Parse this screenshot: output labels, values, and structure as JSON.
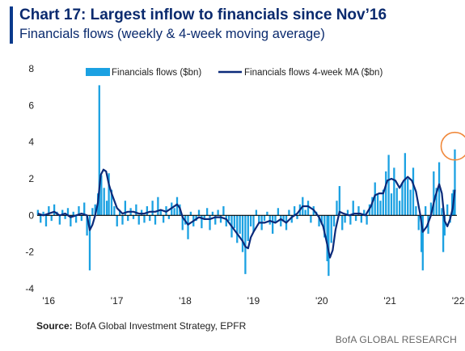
{
  "header": {
    "title": "Chart 17: Largest inflow to financials since Nov’16",
    "subtitle": "Financials flows (weekly & 4-week moving average)"
  },
  "footer": {
    "source_label": "Source:",
    "source_text": "BofA Global Investment Strategy, EPFR",
    "brand": "BofA GLOBAL RESEARCH"
  },
  "colors": {
    "bar": "#1ba1e2",
    "line": "#0b2a7a",
    "highlight_circle": "#f0883a",
    "title": "#0a2a6e"
  },
  "chart_data": {
    "type": "bar",
    "ylim": [
      -4,
      8
    ],
    "y_ticks": [
      "-4",
      "-2",
      "0",
      "2",
      "4",
      "6",
      "8"
    ],
    "x_ticks": [
      {
        "label": "'16",
        "at": 2016.0
      },
      {
        "label": "'17",
        "at": 2017.0
      },
      {
        "label": "'18",
        "at": 2018.0
      },
      {
        "label": "'19",
        "at": 2019.0
      },
      {
        "label": "'20",
        "at": 2020.0
      },
      {
        "label": "'21",
        "at": 2021.0
      },
      {
        "label": "'22",
        "at": 2022.0
      }
    ],
    "x_range": [
      2015.95,
      2022.1
    ],
    "legend_position": "top",
    "annotation": "circle highlighting latest weekly inflow (~3.6)",
    "series": [
      {
        "name": "Financials flows ($bn)",
        "kind": "bar",
        "points": [
          [
            2015.96,
            0.3
          ],
          [
            2016.0,
            -0.4
          ],
          [
            2016.04,
            0.2
          ],
          [
            2016.08,
            -0.6
          ],
          [
            2016.12,
            0.5
          ],
          [
            2016.16,
            -0.3
          ],
          [
            2016.2,
            0.6
          ],
          [
            2016.24,
            0.2
          ],
          [
            2016.28,
            -0.5
          ],
          [
            2016.32,
            0.3
          ],
          [
            2016.36,
            -0.2
          ],
          [
            2016.4,
            0.4
          ],
          [
            2016.44,
            -0.6
          ],
          [
            2016.48,
            0.2
          ],
          [
            2016.52,
            -0.4
          ],
          [
            2016.56,
            0.5
          ],
          [
            2016.6,
            -0.3
          ],
          [
            2016.64,
            0.7
          ],
          [
            2016.68,
            -1.1
          ],
          [
            2016.72,
            -3.0
          ],
          [
            2016.76,
            0.4
          ],
          [
            2016.8,
            0.6
          ],
          [
            2016.84,
            1.2
          ],
          [
            2016.86,
            7.1
          ],
          [
            2016.89,
            2.2
          ],
          [
            2016.93,
            1.5
          ],
          [
            2016.97,
            0.8
          ],
          [
            2017.0,
            2.3
          ],
          [
            2017.04,
            1.4
          ],
          [
            2017.08,
            0.5
          ],
          [
            2017.12,
            -0.6
          ],
          [
            2017.16,
            0.3
          ],
          [
            2017.2,
            -0.5
          ],
          [
            2017.24,
            0.8
          ],
          [
            2017.28,
            -0.3
          ],
          [
            2017.32,
            0.4
          ],
          [
            2017.36,
            -0.2
          ],
          [
            2017.4,
            0.6
          ],
          [
            2017.44,
            -0.5
          ],
          [
            2017.48,
            0.3
          ],
          [
            2017.52,
            -0.4
          ],
          [
            2017.56,
            0.5
          ],
          [
            2017.6,
            -0.3
          ],
          [
            2017.64,
            0.8
          ],
          [
            2017.68,
            -0.5
          ],
          [
            2017.72,
            1.0
          ],
          [
            2017.76,
            0.3
          ],
          [
            2017.8,
            -0.4
          ],
          [
            2017.84,
            0.5
          ],
          [
            2017.88,
            -0.2
          ],
          [
            2017.92,
            0.7
          ],
          [
            2017.96,
            0.4
          ],
          [
            2018.0,
            1.0
          ],
          [
            2018.04,
            0.6
          ],
          [
            2018.08,
            -0.8
          ],
          [
            2018.12,
            -0.5
          ],
          [
            2018.16,
            -1.3
          ],
          [
            2018.2,
            0.2
          ],
          [
            2018.24,
            -0.6
          ],
          [
            2018.28,
            -0.3
          ],
          [
            2018.32,
            0.3
          ],
          [
            2018.36,
            -0.7
          ],
          [
            2018.4,
            -0.2
          ],
          [
            2018.44,
            0.4
          ],
          [
            2018.48,
            -0.8
          ],
          [
            2018.52,
            0.2
          ],
          [
            2018.56,
            -0.5
          ],
          [
            2018.6,
            0.3
          ],
          [
            2018.64,
            -0.4
          ],
          [
            2018.68,
            0.5
          ],
          [
            2018.72,
            -0.6
          ],
          [
            2018.76,
            -0.3
          ],
          [
            2018.8,
            -1.2
          ],
          [
            2018.84,
            -0.7
          ],
          [
            2018.88,
            -1.5
          ],
          [
            2018.92,
            -1.0
          ],
          [
            2018.96,
            -2.0
          ],
          [
            2019.0,
            -3.2
          ],
          [
            2019.04,
            -1.4
          ],
          [
            2019.08,
            -0.6
          ],
          [
            2019.12,
            -0.9
          ],
          [
            2019.16,
            0.3
          ],
          [
            2019.2,
            -0.4
          ],
          [
            2019.24,
            -0.8
          ],
          [
            2019.28,
            -0.3
          ],
          [
            2019.32,
            0.2
          ],
          [
            2019.36,
            -0.5
          ],
          [
            2019.4,
            -1.0
          ],
          [
            2019.44,
            -0.4
          ],
          [
            2019.48,
            0.4
          ],
          [
            2019.52,
            -0.6
          ],
          [
            2019.56,
            -0.3
          ],
          [
            2019.6,
            -0.8
          ],
          [
            2019.64,
            0.3
          ],
          [
            2019.68,
            -0.4
          ],
          [
            2019.72,
            0.5
          ],
          [
            2019.76,
            -0.2
          ],
          [
            2019.8,
            0.6
          ],
          [
            2019.84,
            1.0
          ],
          [
            2019.88,
            0.3
          ],
          [
            2019.92,
            0.8
          ],
          [
            2019.96,
            -0.4
          ],
          [
            2020.0,
            0.5
          ],
          [
            2020.04,
            0.2
          ],
          [
            2020.08,
            -0.6
          ],
          [
            2020.12,
            -0.5
          ],
          [
            2020.16,
            -1.2
          ],
          [
            2020.2,
            -2.5
          ],
          [
            2020.22,
            -3.3
          ],
          [
            2020.26,
            -1.5
          ],
          [
            2020.3,
            -0.6
          ],
          [
            2020.34,
            0.8
          ],
          [
            2020.38,
            1.6
          ],
          [
            2020.42,
            -0.8
          ],
          [
            2020.46,
            -0.4
          ],
          [
            2020.5,
            0.3
          ],
          [
            2020.54,
            -0.5
          ],
          [
            2020.58,
            0.8
          ],
          [
            2020.62,
            -0.3
          ],
          [
            2020.66,
            0.5
          ],
          [
            2020.7,
            -0.4
          ],
          [
            2020.74,
            0.3
          ],
          [
            2020.78,
            -0.5
          ],
          [
            2020.82,
            0.6
          ],
          [
            2020.86,
            1.0
          ],
          [
            2020.9,
            1.8
          ],
          [
            2020.94,
            1.2
          ],
          [
            2020.98,
            0.8
          ],
          [
            2021.02,
            1.4
          ],
          [
            2021.06,
            2.4
          ],
          [
            2021.1,
            3.3
          ],
          [
            2021.14,
            1.2
          ],
          [
            2021.18,
            2.6
          ],
          [
            2021.22,
            1.5
          ],
          [
            2021.26,
            0.8
          ],
          [
            2021.3,
            1.8
          ],
          [
            2021.34,
            3.4
          ],
          [
            2021.38,
            2.0
          ],
          [
            2021.42,
            1.4
          ],
          [
            2021.46,
            2.6
          ],
          [
            2021.5,
            0.5
          ],
          [
            2021.54,
            -0.8
          ],
          [
            2021.58,
            -2.0
          ],
          [
            2021.6,
            -3.0
          ],
          [
            2021.64,
            0.5
          ],
          [
            2021.68,
            -1.0
          ],
          [
            2021.72,
            0.7
          ],
          [
            2021.76,
            2.4
          ],
          [
            2021.8,
            1.5
          ],
          [
            2021.84,
            2.9
          ],
          [
            2021.88,
            0.4
          ],
          [
            2021.9,
            -2.0
          ],
          [
            2021.92,
            -1.1
          ],
          [
            2021.96,
            0.6
          ],
          [
            2022.0,
            -0.4
          ],
          [
            2022.03,
            1.2
          ],
          [
            2022.05,
            1.4
          ],
          [
            2022.07,
            3.6
          ]
        ]
      },
      {
        "name": "Financials flows 4-week MA ($bn)",
        "kind": "line",
        "points": [
          [
            2015.96,
            0.1
          ],
          [
            2016.04,
            0.0
          ],
          [
            2016.12,
            0.1
          ],
          [
            2016.2,
            0.2
          ],
          [
            2016.28,
            0.0
          ],
          [
            2016.36,
            0.1
          ],
          [
            2016.44,
            -0.1
          ],
          [
            2016.52,
            0.0
          ],
          [
            2016.6,
            0.1
          ],
          [
            2016.68,
            0.0
          ],
          [
            2016.72,
            -0.8
          ],
          [
            2016.76,
            -0.5
          ],
          [
            2016.8,
            0.0
          ],
          [
            2016.84,
            0.7
          ],
          [
            2016.88,
            2.2
          ],
          [
            2016.92,
            2.5
          ],
          [
            2016.96,
            2.4
          ],
          [
            2017.0,
            1.7
          ],
          [
            2017.04,
            1.2
          ],
          [
            2017.12,
            0.4
          ],
          [
            2017.2,
            0.1
          ],
          [
            2017.28,
            0.2
          ],
          [
            2017.36,
            0.2
          ],
          [
            2017.44,
            0.1
          ],
          [
            2017.52,
            0.1
          ],
          [
            2017.6,
            0.2
          ],
          [
            2017.68,
            0.2
          ],
          [
            2017.76,
            0.3
          ],
          [
            2017.84,
            0.2
          ],
          [
            2017.92,
            0.4
          ],
          [
            2018.0,
            0.6
          ],
          [
            2018.04,
            0.4
          ],
          [
            2018.08,
            -0.1
          ],
          [
            2018.12,
            -0.3
          ],
          [
            2018.16,
            -0.5
          ],
          [
            2018.24,
            -0.3
          ],
          [
            2018.32,
            -0.1
          ],
          [
            2018.4,
            -0.2
          ],
          [
            2018.48,
            -0.2
          ],
          [
            2018.56,
            -0.1
          ],
          [
            2018.64,
            -0.1
          ],
          [
            2018.72,
            -0.2
          ],
          [
            2018.8,
            -0.6
          ],
          [
            2018.88,
            -1.0
          ],
          [
            2018.96,
            -1.4
          ],
          [
            2019.0,
            -1.7
          ],
          [
            2019.04,
            -1.8
          ],
          [
            2019.08,
            -1.2
          ],
          [
            2019.12,
            -0.9
          ],
          [
            2019.2,
            -0.4
          ],
          [
            2019.28,
            -0.4
          ],
          [
            2019.36,
            -0.3
          ],
          [
            2019.44,
            -0.4
          ],
          [
            2019.52,
            -0.2
          ],
          [
            2019.6,
            -0.4
          ],
          [
            2019.68,
            -0.1
          ],
          [
            2019.76,
            0.1
          ],
          [
            2019.84,
            0.5
          ],
          [
            2019.92,
            0.5
          ],
          [
            2020.0,
            0.3
          ],
          [
            2020.08,
            -0.1
          ],
          [
            2020.14,
            -0.6
          ],
          [
            2020.2,
            -1.6
          ],
          [
            2020.24,
            -2.3
          ],
          [
            2020.28,
            -1.9
          ],
          [
            2020.32,
            -0.8
          ],
          [
            2020.38,
            0.2
          ],
          [
            2020.44,
            0.1
          ],
          [
            2020.52,
            0.0
          ],
          [
            2020.6,
            0.1
          ],
          [
            2020.68,
            0.1
          ],
          [
            2020.76,
            0.0
          ],
          [
            2020.84,
            0.5
          ],
          [
            2020.9,
            1.1
          ],
          [
            2020.96,
            1.2
          ],
          [
            2021.02,
            1.2
          ],
          [
            2021.08,
            1.9
          ],
          [
            2021.14,
            2.0
          ],
          [
            2021.2,
            1.9
          ],
          [
            2021.26,
            1.5
          ],
          [
            2021.32,
            1.9
          ],
          [
            2021.38,
            2.1
          ],
          [
            2021.44,
            1.9
          ],
          [
            2021.5,
            1.3
          ],
          [
            2021.56,
            0.1
          ],
          [
            2021.6,
            -0.9
          ],
          [
            2021.66,
            -0.6
          ],
          [
            2021.72,
            0.0
          ],
          [
            2021.78,
            1.0
          ],
          [
            2021.84,
            1.7
          ],
          [
            2021.88,
            1.2
          ],
          [
            2021.92,
            -0.3
          ],
          [
            2021.96,
            -0.6
          ],
          [
            2022.0,
            -0.2
          ],
          [
            2022.04,
            0.4
          ],
          [
            2022.07,
            1.4
          ]
        ]
      }
    ]
  }
}
